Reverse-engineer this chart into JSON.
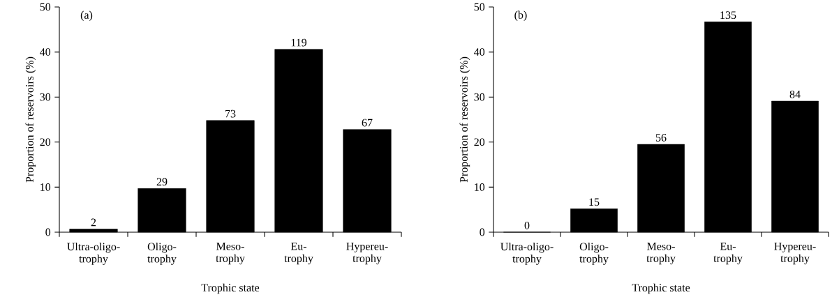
{
  "chart_data": [
    {
      "type": "bar",
      "xlabel": "Trophic state",
      "ylabel": "Proportion of reservoirs (%)",
      "annotations": [
        "(a)",
        {
          "text": "2",
          "x": "Ultra-oligo-trophy",
          "y": 0.7
        },
        {
          "text": "29",
          "x": "Oligo-trophy",
          "y": 9.7
        },
        {
          "text": "73",
          "x": "Meso-trophy",
          "y": 24.8
        },
        {
          "text": "119",
          "x": "Eu-trophy",
          "y": 40.6
        },
        {
          "text": "67",
          "x": "Hypereu-trophy",
          "y": 22.8
        }
      ],
      "categories": [
        "Ultra-oligo-trophy",
        "Oligo-trophy",
        "Meso-trophy",
        "Eu-trophy",
        "Hypereu-trophy"
      ],
      "values": [
        0.7,
        9.7,
        24.8,
        40.6,
        22.8
      ],
      "color": "#000000",
      "ylim": [
        0,
        50
      ],
      "yticks": [
        0,
        10,
        20,
        30,
        40,
        50
      ],
      "grid": false
    },
    {
      "type": "bar",
      "xlabel": "Trophic state",
      "ylabel": "Proportion of reservoirs (%)",
      "annotations": [
        "(b)",
        {
          "text": "0",
          "x": "Ultra-oligo-trophy",
          "y": 0
        },
        {
          "text": "15",
          "x": "Oligo-trophy",
          "y": 5.2
        },
        {
          "text": "56",
          "x": "Meso-trophy",
          "y": 19.5
        },
        {
          "text": "135",
          "x": "Eu-trophy",
          "y": 46.7
        },
        {
          "text": "84",
          "x": "Hypereu-trophy",
          "y": 29.1
        }
      ],
      "categories": [
        "Ultra-oligo-trophy",
        "Oligo-trophy",
        "Meso-trophy",
        "Eu-trophy",
        "Hypereu-trophy"
      ],
      "values": [
        0,
        5.2,
        19.5,
        46.7,
        29.1
      ],
      "color": "#000000",
      "ylim": [
        0,
        50
      ],
      "yticks": [
        0,
        10,
        20,
        30,
        40,
        50
      ],
      "grid": false
    }
  ]
}
